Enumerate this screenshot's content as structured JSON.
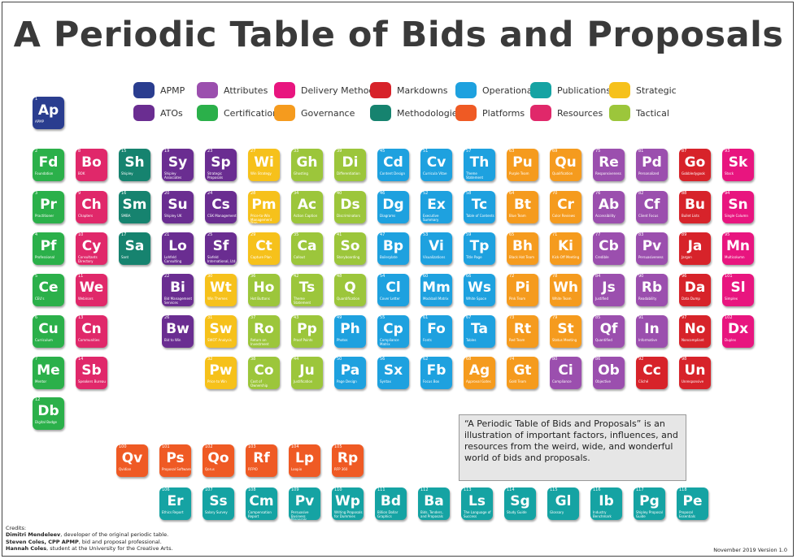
{
  "title": "A Periodic Table of Bids and Proposals",
  "colors": {
    "APMP": "#2a3d8f",
    "Attributes": "#9b4fae",
    "Delivery Methods": "#e8157f",
    "Markdowns": "#d7232a",
    "Operational": "#1ea1df",
    "Publications": "#15a3a3",
    "Strategic": "#f6c11b",
    "ATOs": "#6a2d91",
    "Certification": "#2bb04a",
    "Governance": "#f59b1e",
    "Methodologies": "#16836f",
    "Platforms": "#ef5a24",
    "Resources": "#e0286a",
    "Tactical": "#9cc63b"
  },
  "legend": [
    {
      "label": "APMP",
      "category": "APMP"
    },
    {
      "label": "Attributes",
      "category": "Attributes"
    },
    {
      "label": "Delivery Methods",
      "category": "Delivery Methods"
    },
    {
      "label": "Markdowns",
      "category": "Markdowns"
    },
    {
      "label": "Operational",
      "category": "Operational"
    },
    {
      "label": "Publications",
      "category": "Publications"
    },
    {
      "label": "Strategic",
      "category": "Strategic"
    },
    {
      "label": "ATOs",
      "category": "ATOs"
    },
    {
      "label": "Certification",
      "category": "Certification"
    },
    {
      "label": "Governance",
      "category": "Governance"
    },
    {
      "label": "Methodologies",
      "category": "Methodologies"
    },
    {
      "label": "Platforms",
      "category": "Platforms"
    },
    {
      "label": "Resources",
      "category": "Resources"
    },
    {
      "label": "Tactical",
      "category": "Tactical"
    }
  ],
  "elements": [
    {
      "num": "1",
      "sym": "Ap",
      "name": "APMP",
      "cat": "APMP"
    },
    {
      "num": "2",
      "sym": "Fd",
      "name": "Foundation",
      "cat": "Certification"
    },
    {
      "num": "8",
      "sym": "Bo",
      "name": "BOK",
      "cat": "Resources"
    },
    {
      "num": "15",
      "sym": "Sh",
      "name": "Shipley",
      "cat": "Methodologies"
    },
    {
      "num": "19",
      "sym": "Sy",
      "name": "Shipley Associates",
      "cat": "ATOs"
    },
    {
      "num": "23",
      "sym": "Sp",
      "name": "Strategic Proposals",
      "cat": "ATOs"
    },
    {
      "num": "27",
      "sym": "Wi",
      "name": "Win Strategy",
      "cat": "Strategic"
    },
    {
      "num": "33",
      "sym": "Gh",
      "name": "Ghosting",
      "cat": "Tactical"
    },
    {
      "num": "39",
      "sym": "Di",
      "name": "Differentiation",
      "cat": "Tactical"
    },
    {
      "num": "45",
      "sym": "Cd",
      "name": "Content Design",
      "cat": "Operational"
    },
    {
      "num": "51",
      "sym": "Cv",
      "name": "Curricula Vitae",
      "cat": "Operational"
    },
    {
      "num": "57",
      "sym": "Th",
      "name": "Theme Statement",
      "cat": "Operational"
    },
    {
      "num": "63",
      "sym": "Pu",
      "name": "Purple Team",
      "cat": "Governance"
    },
    {
      "num": "69",
      "sym": "Qu",
      "name": "Qualification",
      "cat": "Governance"
    },
    {
      "num": "75",
      "sym": "Re",
      "name": "Responsiveness",
      "cat": "Attributes"
    },
    {
      "num": "81",
      "sym": "Pd",
      "name": "Personalized",
      "cat": "Attributes"
    },
    {
      "num": "87",
      "sym": "Go",
      "name": "Gobbledygook",
      "cat": "Markdowns"
    },
    {
      "num": "93",
      "sym": "Sk",
      "name": "Stock",
      "cat": "Delivery Methods"
    },
    {
      "num": "3",
      "sym": "Pr",
      "name": "Practitioner",
      "cat": "Certification"
    },
    {
      "num": "9",
      "sym": "Ch",
      "name": "Chapters",
      "cat": "Resources"
    },
    {
      "num": "16",
      "sym": "Sm",
      "name": "SMBA",
      "cat": "Methodologies"
    },
    {
      "num": "20",
      "sym": "Su",
      "name": "Shipley UK",
      "cat": "ATOs"
    },
    {
      "num": "24",
      "sym": "Cs",
      "name": "CSK Management",
      "cat": "ATOs"
    },
    {
      "num": "28",
      "sym": "Pm",
      "name": "Price-to-Win Management Plan",
      "cat": "Strategic"
    },
    {
      "num": "34",
      "sym": "Ac",
      "name": "Action Caption",
      "cat": "Tactical"
    },
    {
      "num": "40",
      "sym": "Ds",
      "name": "Discriminators",
      "cat": "Tactical"
    },
    {
      "num": "46",
      "sym": "Dg",
      "name": "Diagrams",
      "cat": "Operational"
    },
    {
      "num": "52",
      "sym": "Ex",
      "name": "Executive Summary",
      "cat": "Operational"
    },
    {
      "num": "58",
      "sym": "Tc",
      "name": "Table of Contents",
      "cat": "Operational"
    },
    {
      "num": "64",
      "sym": "Bt",
      "name": "Blue Team",
      "cat": "Governance"
    },
    {
      "num": "70",
      "sym": "Cr",
      "name": "Color Reviews",
      "cat": "Governance"
    },
    {
      "num": "76",
      "sym": "Ab",
      "name": "Accessibility",
      "cat": "Attributes"
    },
    {
      "num": "82",
      "sym": "Cf",
      "name": "Client Focus",
      "cat": "Attributes"
    },
    {
      "num": "88",
      "sym": "Bu",
      "name": "Bullet Lists",
      "cat": "Markdowns"
    },
    {
      "num": "94",
      "sym": "Sn",
      "name": "Single Column",
      "cat": "Delivery Methods"
    },
    {
      "num": "4",
      "sym": "Pf",
      "name": "Professional",
      "cat": "Certification"
    },
    {
      "num": "10",
      "sym": "Cy",
      "name": "Consultants Directory",
      "cat": "Resources"
    },
    {
      "num": "17",
      "sym": "Sa",
      "name": "Sant",
      "cat": "Methodologies"
    },
    {
      "num": "21",
      "sym": "Lo",
      "name": "Lohfeld Consulting",
      "cat": "ATOs"
    },
    {
      "num": "25",
      "sym": "Sf",
      "name": "Sivfeld International, Ltd.",
      "cat": "ATOs"
    },
    {
      "num": "29",
      "sym": "Ct",
      "name": "Capture Plan",
      "cat": "Strategic"
    },
    {
      "num": "35",
      "sym": "Ca",
      "name": "Callout",
      "cat": "Tactical"
    },
    {
      "num": "41",
      "sym": "So",
      "name": "Storyboarding",
      "cat": "Tactical"
    },
    {
      "num": "47",
      "sym": "Bp",
      "name": "Boilerplate",
      "cat": "Operational"
    },
    {
      "num": "53",
      "sym": "Vi",
      "name": "Visualizations",
      "cat": "Operational"
    },
    {
      "num": "59",
      "sym": "Tp",
      "name": "Title Page",
      "cat": "Operational"
    },
    {
      "num": "65",
      "sym": "Bh",
      "name": "Black Hat Team",
      "cat": "Governance"
    },
    {
      "num": "71",
      "sym": "Ki",
      "name": "Kick-Off Meeting",
      "cat": "Governance"
    },
    {
      "num": "77",
      "sym": "Cb",
      "name": "Credible",
      "cat": "Attributes"
    },
    {
      "num": "83",
      "sym": "Pv",
      "name": "Persuasiveness",
      "cat": "Attributes"
    },
    {
      "num": "89",
      "sym": "Ja",
      "name": "Jargon",
      "cat": "Markdowns"
    },
    {
      "num": "95",
      "sym": "Mn",
      "name": "Multicolumn",
      "cat": "Delivery Methods"
    },
    {
      "num": "5",
      "sym": "Ce",
      "name": "CEU's",
      "cat": "Certification"
    },
    {
      "num": "11",
      "sym": "We",
      "name": "Webinars",
      "cat": "Resources"
    },
    {
      "num": "22",
      "sym": "Bi",
      "name": "Bid Management Services",
      "cat": "ATOs"
    },
    {
      "num": "30",
      "sym": "Wt",
      "name": "Win Themes",
      "cat": "Strategic"
    },
    {
      "num": "36",
      "sym": "Ho",
      "name": "Hot Buttons",
      "cat": "Tactical"
    },
    {
      "num": "42",
      "sym": "Ts",
      "name": "Theme Statement",
      "cat": "Tactical"
    },
    {
      "num": "48",
      "sym": "Q",
      "name": "Quantification",
      "cat": "Tactical"
    },
    {
      "num": "54",
      "sym": "Cl",
      "name": "Cover Letter",
      "cat": "Operational"
    },
    {
      "num": "60",
      "sym": "Mm",
      "name": "Mockball Matrix",
      "cat": "Operational"
    },
    {
      "num": "66",
      "sym": "Ws",
      "name": "White Space",
      "cat": "Operational"
    },
    {
      "num": "72",
      "sym": "Pi",
      "name": "Pink Team",
      "cat": "Governance"
    },
    {
      "num": "78",
      "sym": "Wh",
      "name": "White Team",
      "cat": "Governance"
    },
    {
      "num": "84",
      "sym": "Js",
      "name": "Justified",
      "cat": "Attributes"
    },
    {
      "num": "90",
      "sym": "Rb",
      "name": "Readability",
      "cat": "Attributes"
    },
    {
      "num": "96",
      "sym": "Da",
      "name": "Data Dump",
      "cat": "Markdowns"
    },
    {
      "num": "101",
      "sym": "Sl",
      "name": "Simplex",
      "cat": "Delivery Methods"
    },
    {
      "num": "6",
      "sym": "Cu",
      "name": "Curriculum",
      "cat": "Certification"
    },
    {
      "num": "13",
      "sym": "Cn",
      "name": "Communities",
      "cat": "Resources"
    },
    {
      "num": "26",
      "sym": "Bw",
      "name": "Bid to Win",
      "cat": "ATOs"
    },
    {
      "num": "31",
      "sym": "Sw",
      "name": "SWOT Analysis",
      "cat": "Strategic"
    },
    {
      "num": "37",
      "sym": "Ro",
      "name": "Return on Investment",
      "cat": "Tactical"
    },
    {
      "num": "43",
      "sym": "Pp",
      "name": "Proof Points",
      "cat": "Tactical"
    },
    {
      "num": "49",
      "sym": "Ph",
      "name": "Photos",
      "cat": "Operational"
    },
    {
      "num": "55",
      "sym": "Cp",
      "name": "Compliance Matrix",
      "cat": "Operational"
    },
    {
      "num": "61",
      "sym": "Fo",
      "name": "Fonts",
      "cat": "Operational"
    },
    {
      "num": "67",
      "sym": "Ta",
      "name": "Tables",
      "cat": "Operational"
    },
    {
      "num": "73",
      "sym": "Rt",
      "name": "Red Team",
      "cat": "Governance"
    },
    {
      "num": "79",
      "sym": "St",
      "name": "Status Meeting",
      "cat": "Governance"
    },
    {
      "num": "85",
      "sym": "Qf",
      "name": "Quantified",
      "cat": "Attributes"
    },
    {
      "num": "91",
      "sym": "In",
      "name": "Informative",
      "cat": "Attributes"
    },
    {
      "num": "97",
      "sym": "No",
      "name": "Noncompliant",
      "cat": "Markdowns"
    },
    {
      "num": "102",
      "sym": "Dx",
      "name": "Duplex",
      "cat": "Delivery Methods"
    },
    {
      "num": "7",
      "sym": "Me",
      "name": "Mentor",
      "cat": "Certification"
    },
    {
      "num": "14",
      "sym": "Sb",
      "name": "Speakers Bureau",
      "cat": "Resources"
    },
    {
      "num": "32",
      "sym": "Pw",
      "name": "Price to Win",
      "cat": "Strategic"
    },
    {
      "num": "38",
      "sym": "Co",
      "name": "Cost of Ownership",
      "cat": "Tactical"
    },
    {
      "num": "44",
      "sym": "Ju",
      "name": "Justification",
      "cat": "Tactical"
    },
    {
      "num": "50",
      "sym": "Pa",
      "name": "Page Design",
      "cat": "Operational"
    },
    {
      "num": "56",
      "sym": "Sx",
      "name": "Syntax",
      "cat": "Operational"
    },
    {
      "num": "62",
      "sym": "Fb",
      "name": "Focus Box",
      "cat": "Operational"
    },
    {
      "num": "68",
      "sym": "Ag",
      "name": "Approval Gates",
      "cat": "Governance"
    },
    {
      "num": "74",
      "sym": "Gt",
      "name": "Gold Team",
      "cat": "Governance"
    },
    {
      "num": "80",
      "sym": "Ci",
      "name": "Compliance",
      "cat": "Attributes"
    },
    {
      "num": "86",
      "sym": "Ob",
      "name": "Objective",
      "cat": "Attributes"
    },
    {
      "num": "92",
      "sym": "Cc",
      "name": "Cliché",
      "cat": "Markdowns"
    },
    {
      "num": "98",
      "sym": "Un",
      "name": "Unresponsive",
      "cat": "Markdowns"
    },
    {
      "num": "12",
      "sym": "Db",
      "name": "Digital Badge",
      "cat": "Certification"
    },
    {
      "num": "100",
      "sym": "Qv",
      "name": "Qvidian",
      "cat": "Platforms"
    },
    {
      "num": "101",
      "sym": "Ps",
      "name": "Proposal Software",
      "cat": "Platforms"
    },
    {
      "num": "102",
      "sym": "Qo",
      "name": "Qorus",
      "cat": "Platforms"
    },
    {
      "num": "103",
      "sym": "Rf",
      "name": "RFPIO",
      "cat": "Platforms"
    },
    {
      "num": "104",
      "sym": "Lp",
      "name": "Loopio",
      "cat": "Platforms"
    },
    {
      "num": "105",
      "sym": "Rp",
      "name": "RFP 360",
      "cat": "Platforms"
    },
    {
      "num": "106",
      "sym": "Er",
      "name": "Ethics Report",
      "cat": "Publications"
    },
    {
      "num": "107",
      "sym": "Ss",
      "name": "Salary Survey",
      "cat": "Publications"
    },
    {
      "num": "108",
      "sym": "Cm",
      "name": "Compensation Report",
      "cat": "Publications"
    },
    {
      "num": "109",
      "sym": "Pv",
      "name": "Persuasive Business Proposals",
      "cat": "Publications"
    },
    {
      "num": "110",
      "sym": "Wp",
      "name": "Writing Proposals for Dummies",
      "cat": "Publications"
    },
    {
      "num": "111",
      "sym": "Bd",
      "name": "Billion Dollar Graphics",
      "cat": "Publications"
    },
    {
      "num": "112",
      "sym": "Ba",
      "name": "Bids, Tenders, and Proposals",
      "cat": "Publications"
    },
    {
      "num": "113",
      "sym": "Ls",
      "name": "The Language of Success",
      "cat": "Publications"
    },
    {
      "num": "114",
      "sym": "Sg",
      "name": "Study Guide",
      "cat": "Publications"
    },
    {
      "num": "115",
      "sym": "Gl",
      "name": "Glossary",
      "cat": "Publications"
    },
    {
      "num": "116",
      "sym": "Ib",
      "name": "Industry Benchmark",
      "cat": "Publications"
    },
    {
      "num": "117",
      "sym": "Pg",
      "name": "Shipley Proposal Guide",
      "cat": "Publications"
    },
    {
      "num": "118",
      "sym": "Pe",
      "name": "Proposal Essentials",
      "cat": "Publications"
    }
  ],
  "info_text": "“A Periodic Table of Bids and Proposals” is an illustration of important factors, influences, and resources from the weird, wide, and wonderful world of bids and proposals.",
  "credits": {
    "heading": "Credits:",
    "line1_name": "Dimitri Mendeleev",
    "line1_rest": ", developer of the original periodic table.",
    "line2_name": "Steven Coles, CPP APMP",
    "line2_rest": ", bid and proposal professional.",
    "line3_name": "Hannah Coles",
    "line3_rest": ", student at the University for the Creative Arts."
  },
  "version": "November 2019 Version 1.0"
}
